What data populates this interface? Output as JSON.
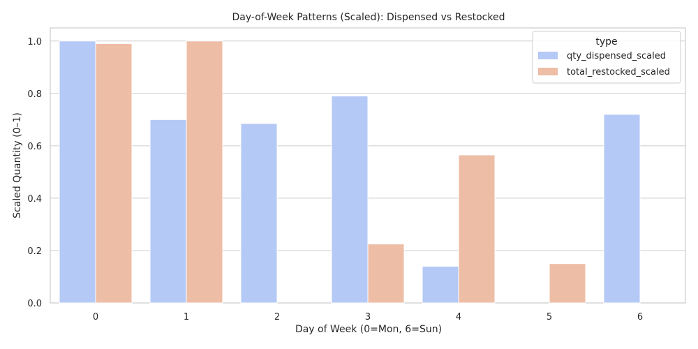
{
  "chart_data": {
    "type": "bar",
    "title": "Day-of-Week Patterns (Scaled): Dispensed vs Restocked",
    "xlabel": "Day of Week (0=Mon, 6=Sun)",
    "ylabel": "Scaled Quantity (0–1)",
    "categories": [
      "0",
      "1",
      "2",
      "3",
      "4",
      "5",
      "6"
    ],
    "ylim": [
      0,
      1.05
    ],
    "yticks": [
      "0.0",
      "0.2",
      "0.4",
      "0.6",
      "0.8",
      "1.0"
    ],
    "grid": true,
    "legend": {
      "title": "type",
      "position": "top-right"
    },
    "series": [
      {
        "name": "qty_dispensed_scaled",
        "color": "#b4c9f6",
        "values": [
          1.0,
          0.7,
          0.685,
          0.79,
          0.14,
          0.0,
          0.72
        ]
      },
      {
        "name": "total_restocked_scaled",
        "color": "#eebda6",
        "values": [
          0.99,
          1.0,
          0.0,
          0.225,
          0.565,
          0.15,
          0.0
        ]
      }
    ]
  }
}
